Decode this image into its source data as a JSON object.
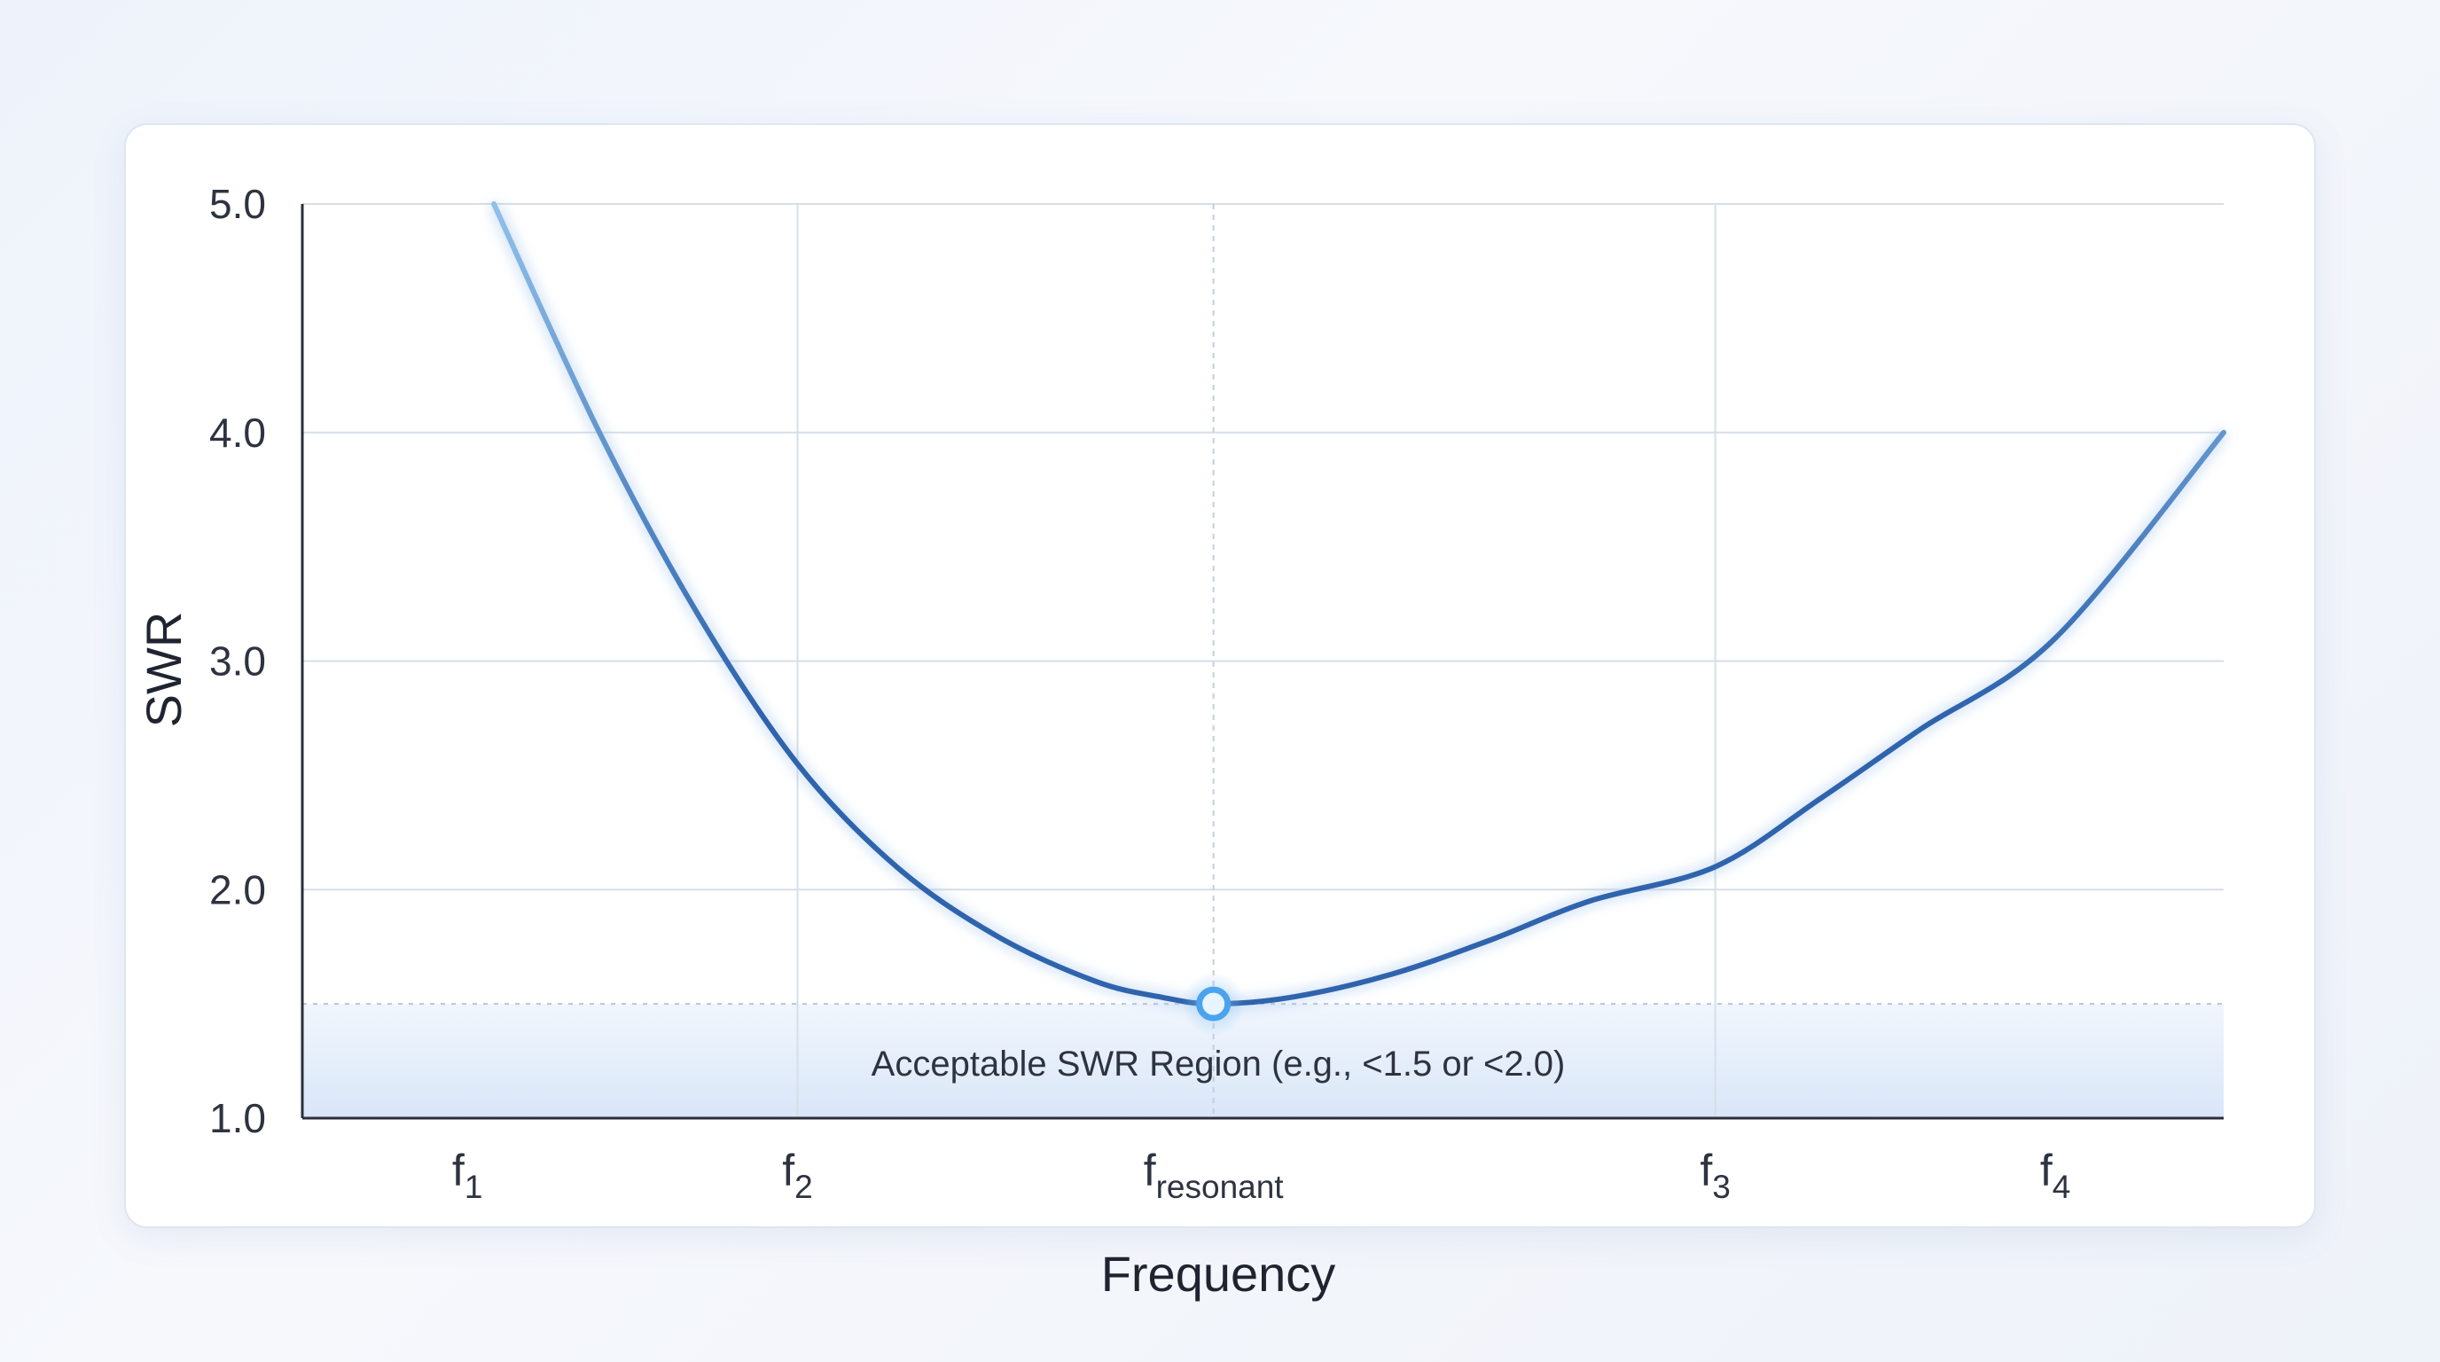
{
  "chart_data": {
    "type": "line",
    "xlabel": "Frequency",
    "ylabel": "SWR",
    "ylim": [
      1.0,
      5.0
    ],
    "yticks": [
      "1.0",
      "2.0",
      "3.0",
      "4.0",
      "5.0"
    ],
    "xlim": [
      0.5,
      6.32
    ],
    "xticks": [
      {
        "value": 1.0,
        "base": "f",
        "sub": "1"
      },
      {
        "value": 2.0,
        "base": "f",
        "sub": "2"
      },
      {
        "value": 3.26,
        "base": "f",
        "sub": "resonant"
      },
      {
        "value": 4.78,
        "base": "f",
        "sub": "3"
      },
      {
        "value": 5.81,
        "base": "f",
        "sub": "4"
      }
    ],
    "grid": true,
    "series": [
      {
        "x": [
          1.08,
          1.4,
          1.7,
          2.0,
          2.3,
          2.6,
          2.9,
          3.1,
          3.26,
          3.5,
          3.8,
          4.1,
          4.4,
          4.78,
          5.1,
          5.4,
          5.81,
          6.32
        ],
        "y": [
          5.0,
          4.0,
          3.2,
          2.55,
          2.1,
          1.8,
          1.6,
          1.53,
          1.5,
          1.53,
          1.63,
          1.78,
          1.95,
          2.1,
          2.4,
          2.7,
          3.1,
          4.0
        ]
      }
    ],
    "acceptable_threshold": 1.5,
    "resonant_point": {
      "x": 3.26,
      "y": 1.5
    },
    "annotation": "Acceptable SWR Region (e.g., <1.5 or <2.0)",
    "colors": {
      "curve_dark": "#2f64ad",
      "curve_light": "#90c0ea",
      "marker_fill": "#e8f4ff",
      "marker_stroke": "#4aa3ec",
      "region_top": "#f1f6fd",
      "region_bottom": "#d9e6f8",
      "grid": "#d6dee8",
      "axis": "#2a2f3a"
    }
  }
}
